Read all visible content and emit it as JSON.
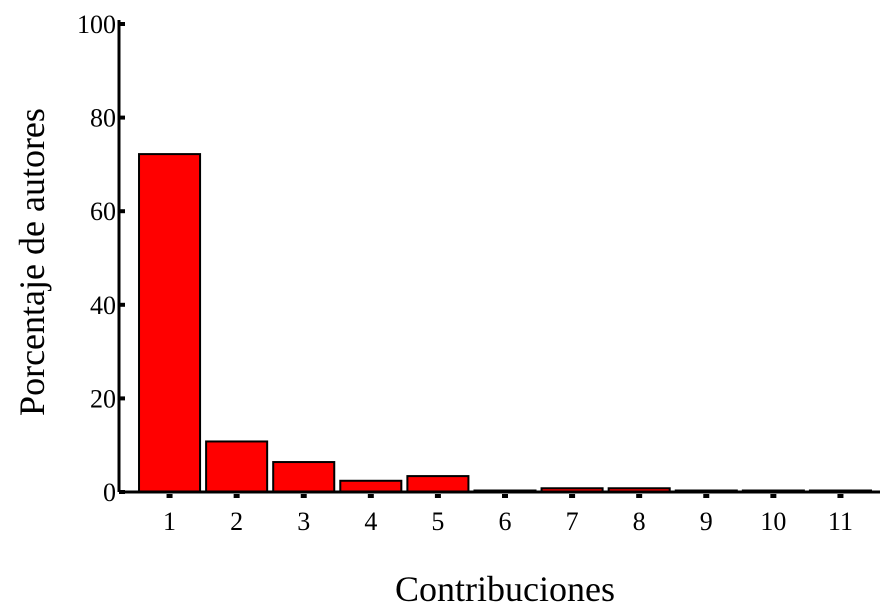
{
  "chart_data": {
    "type": "bar",
    "title": "",
    "xlabel": "Contribuciones",
    "ylabel": "Porcentaje de autores",
    "categories": [
      "1",
      "2",
      "3",
      "4",
      "5",
      "6",
      "7",
      "8",
      "9",
      "10",
      "11"
    ],
    "values": [
      72.2,
      10.8,
      6.4,
      2.4,
      3.4,
      0.3,
      0.8,
      0.8,
      0.3,
      0.3,
      0.3
    ],
    "ylim": [
      0,
      100
    ],
    "yticks": [
      "0",
      "20",
      "40",
      "60",
      "80",
      "100"
    ],
    "grid": false,
    "legend": "none",
    "colors": {
      "bar_fill": "#ff0000",
      "bar_stroke": "#000000",
      "axis": "#000000",
      "background": "#ffffff"
    }
  }
}
